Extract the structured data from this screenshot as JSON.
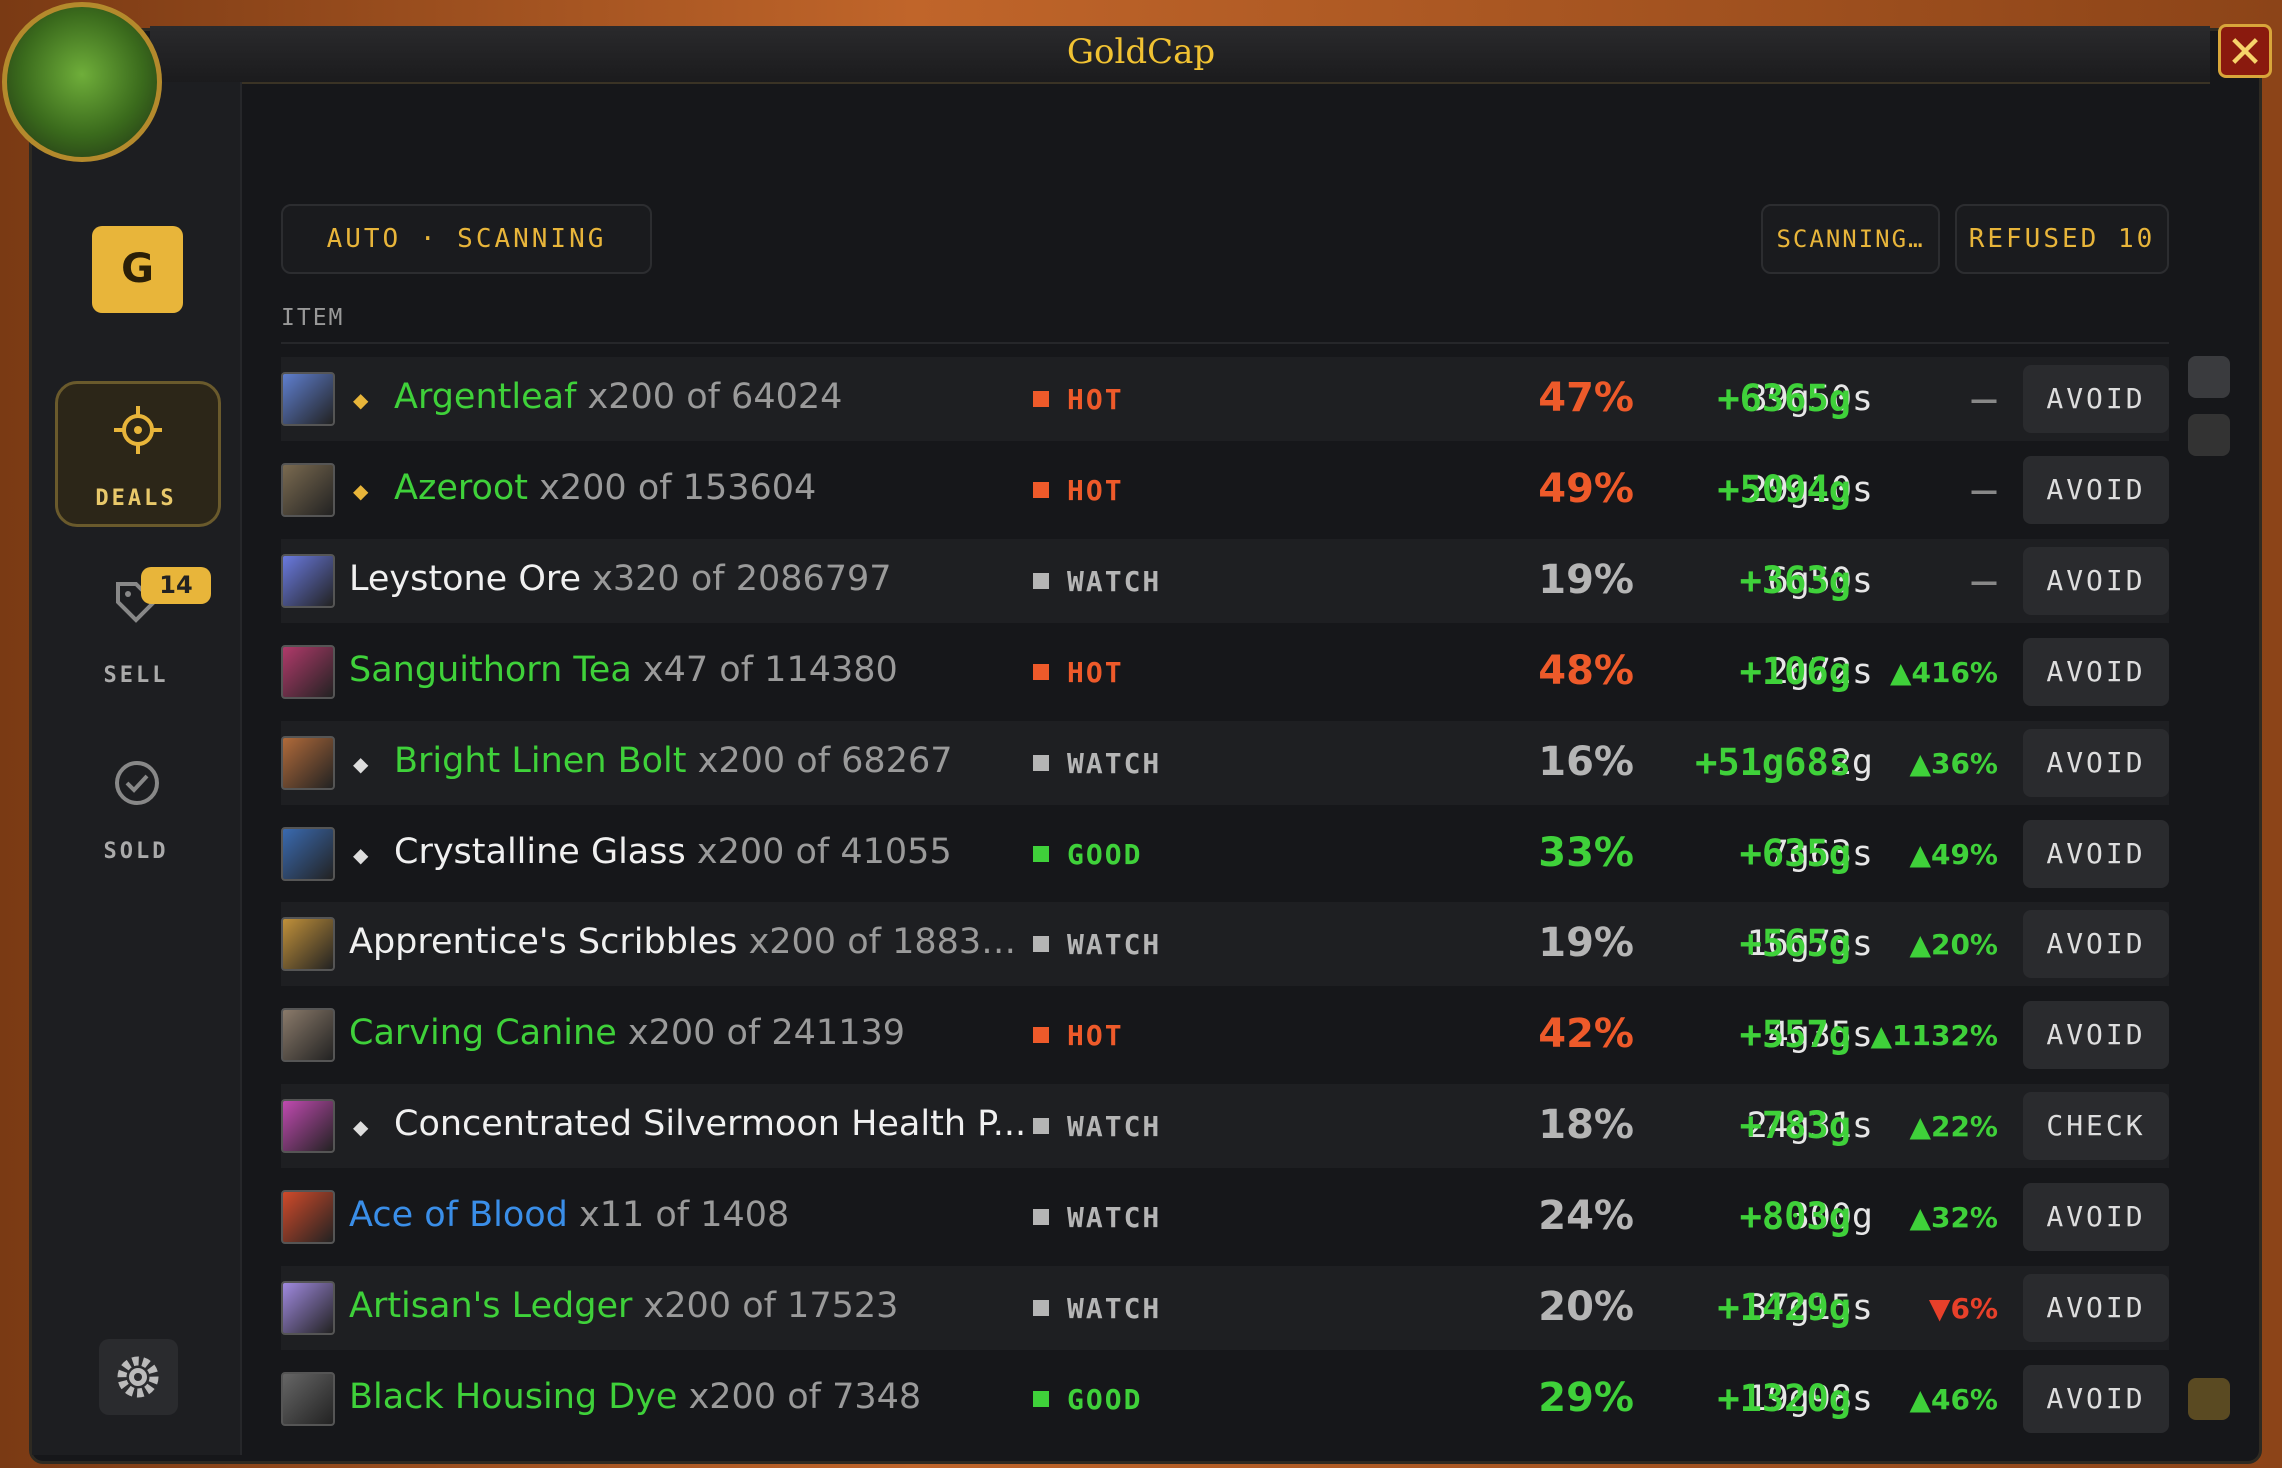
{
  "title": "GoldCap",
  "sidebar": {
    "logo": "G",
    "nav": [
      {
        "label": "DEALS"
      },
      {
        "label": "SELL",
        "badge": "14"
      },
      {
        "label": "SOLD"
      }
    ]
  },
  "toolbar": {
    "mode": "AUTO · SCANNING",
    "status": "SCANNING…",
    "refused": "REFUSED 10"
  },
  "table": {
    "header": "ITEM",
    "rows": [
      {
        "name": "Argentleaf",
        "qty": "x200 of 64024",
        "quality": "green",
        "marker": "gold",
        "tag": "HOT",
        "pct": "47%",
        "price": "39g50s",
        "profit": "+6365g",
        "trend": "—",
        "action": "AVOID"
      },
      {
        "name": "Azeroot",
        "qty": "x200 of 153604",
        "quality": "green",
        "marker": "gold",
        "tag": "HOT",
        "pct": "49%",
        "price": "29g10s",
        "profit": "+5094g",
        "trend": "—",
        "action": "AVOID"
      },
      {
        "name": "Leystone Ore",
        "qty": "x320 of 2086797",
        "quality": "white",
        "tag": "WATCH",
        "pct": "19%",
        "price": "6g50s",
        "profit": "+363g",
        "trend": "—",
        "action": "AVOID"
      },
      {
        "name": "Sanguithorn Tea",
        "qty": "x47 of 114380",
        "quality": "green",
        "tag": "HOT",
        "pct": "48%",
        "price": "2g72s",
        "profit": "+106g",
        "trend": "▲416%",
        "action": "AVOID"
      },
      {
        "name": "Bright Linen Bolt",
        "qty": "x200 of 68267",
        "quality": "green",
        "marker": "white",
        "tag": "WATCH",
        "pct": "16%",
        "price": "2g",
        "profit": "+51g68s",
        "trend": "▲36%",
        "action": "AVOID"
      },
      {
        "name": "Crystalline Glass",
        "qty": "x200 of 41055",
        "quality": "white",
        "marker": "white",
        "tag": "GOOD",
        "pct": "33%",
        "price": "7g63s",
        "profit": "+635g",
        "trend": "▲49%",
        "action": "AVOID"
      },
      {
        "name": "Apprentice's Scribbles",
        "qty": "x200 of 1883…",
        "quality": "white",
        "tag": "WATCH",
        "pct": "19%",
        "price": "16g73s",
        "profit": "+565g",
        "trend": "▲20%",
        "action": "AVOID"
      },
      {
        "name": "Carving Canine",
        "qty": "x200 of 241139",
        "quality": "green",
        "tag": "HOT",
        "pct": "42%",
        "price": "4g35s",
        "profit": "+557g",
        "trend": "▲1132%",
        "action": "AVOID"
      },
      {
        "name": "Concentrated Silvermoon Health P...",
        "quality": "white",
        "marker": "white",
        "tag": "WATCH",
        "pct": "18%",
        "price": "24g31s",
        "profit": "+783g",
        "trend": "▲22%",
        "action": "CHECK"
      },
      {
        "name": "Ace of Blood",
        "qty": "x11 of 1408",
        "quality": "blue",
        "tag": "WATCH",
        "pct": "24%",
        "price": "300g",
        "profit": "+803g",
        "trend": "▲32%",
        "action": "AVOID"
      },
      {
        "name": "Artisan's Ledger",
        "qty": "x200 of 17523",
        "quality": "green",
        "tag": "WATCH",
        "pct": "20%",
        "price": "37g15s",
        "profit": "+1429g",
        "trend": "▼6%",
        "action": "AVOID"
      },
      {
        "name": "Black Housing Dye",
        "qty": "x200 of 7348",
        "quality": "green",
        "tag": "GOOD",
        "pct": "29%",
        "price": "19g98s",
        "profit": "+1320g",
        "trend": "▲46%",
        "action": "AVOID"
      }
    ]
  }
}
